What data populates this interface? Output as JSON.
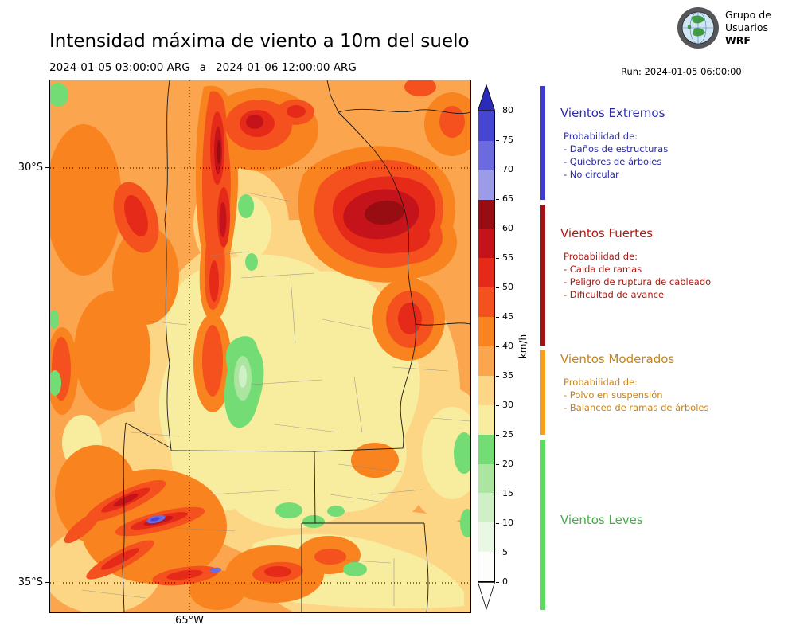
{
  "header": {
    "title": "Intensidad máxima de viento a 10m del suelo",
    "period_start": "2024-01-05 03:00:00 ARG",
    "period_sep": "a",
    "period_end": "2024-01-06 12:00:00 ARG",
    "run": "Run: 2024-01-05 06:00:00",
    "logo": {
      "line1": "Grupo de",
      "line2": "Usuarios",
      "line3": "WRF"
    }
  },
  "map": {
    "y_tick_labels": [
      "30°S",
      "35°S"
    ],
    "x_tick_labels": [
      "65°W"
    ]
  },
  "colorbar": {
    "unit": "km/h",
    "levels": [
      "0",
      "5",
      "10",
      "15",
      "20",
      "25",
      "30",
      "35",
      "40",
      "45",
      "50",
      "55",
      "60",
      "65",
      "70",
      "75",
      "80"
    ],
    "band_colors": [
      "#FDFEFB",
      "#E9F8E4",
      "#CFEFC6",
      "#ABE5A0",
      "#74DC74",
      "#F8EC9E",
      "#FDD685",
      "#FCA54F",
      "#F8831F",
      "#F4511E",
      "#E62A19",
      "#C5131B",
      "#980D12",
      "#9B9BE8",
      "#6B6BDF",
      "#4646D2"
    ],
    "over_color": "#2B2BBB",
    "under_color": "#FFFFFF"
  },
  "categories": {
    "extremos": {
      "bar_color": "#3C3CCF",
      "text_color": "#2B2BA8",
      "title": "Vientos Extremos",
      "prob": "Probabilidad de:",
      "items": [
        "- Daños de estructuras",
        "- Quiebres de árboles",
        "- No circular"
      ]
    },
    "fuertes": {
      "bar_color": "#A31212",
      "text_color": "#AE1A12",
      "title": "Vientos Fuertes",
      "prob": "Probabilidad de:",
      "items": [
        "- Caida de ramas",
        "- Peligro de ruptura de cableado",
        "- Dificultad de avance"
      ]
    },
    "moderados": {
      "bar_color": "#F99D1C",
      "text_color": "#C5831A",
      "title": "Vientos Moderados",
      "prob": "Probabilidad de:",
      "items": [
        "- Polvo en suspensión",
        "- Balanceo de ramas de árboles"
      ]
    },
    "leves": {
      "bar_color": "#5CDC5C",
      "text_color": "#47A947",
      "title": "Vientos Leves"
    }
  }
}
